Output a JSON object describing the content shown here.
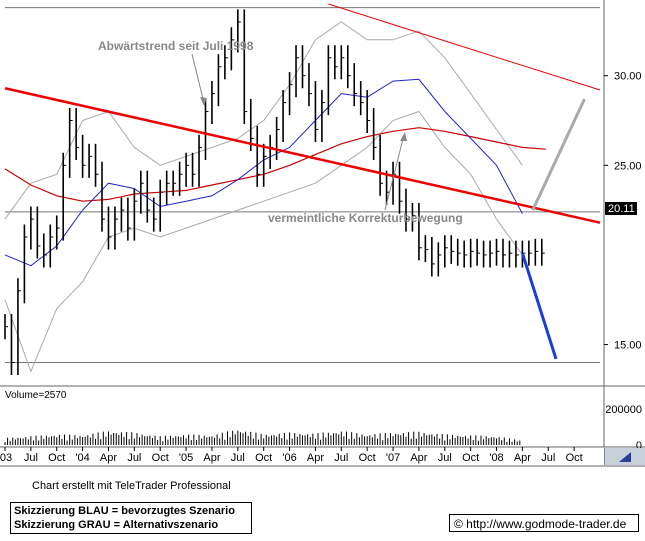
{
  "chart_data": {
    "type": "line",
    "price_axis": {
      "ticks": [
        {
          "label": "30.00",
          "value": 30
        },
        {
          "label": "25.00",
          "value": 25
        },
        {
          "label": "15.00",
          "value": 15
        }
      ],
      "range": [
        12.8,
        34
      ]
    },
    "last_price": {
      "label": "20.11",
      "value": 20.11
    },
    "volume_axis": {
      "label": "Volume=2570",
      "ticks": [
        {
          "label": "200000",
          "value": 200000
        },
        {
          "label": "0",
          "value": 0
        }
      ],
      "range": [
        0,
        250000
      ]
    },
    "x_ticks": [
      "'03",
      "Jul",
      "Oct",
      "'04",
      "Apr",
      "Jul",
      "Oct",
      "'05",
      "Apr",
      "Jul",
      "Oct",
      "'06",
      "Apr",
      "Jul",
      "Oct",
      "'07",
      "Apr",
      "Jul",
      "Oct",
      "'08",
      "Apr",
      "Jul",
      "Oct"
    ],
    "x_range": [
      0,
      23
    ],
    "annotations": [
      {
        "text": "Abwärtstrend seit Juli 1998"
      },
      {
        "text": "vermeintliche Korrekturbewegung"
      }
    ],
    "trendlines": [
      {
        "kind": "downtrend",
        "color": "#ee0000",
        "from": [
          0,
          29.3
        ],
        "to": [
          23,
          21.8
        ]
      },
      {
        "kind": "upper-channel",
        "color": "#ee0000",
        "from": [
          12.5,
          34.0
        ],
        "to": [
          23,
          29.2
        ]
      },
      {
        "kind": "horizontal-top",
        "color": "#777777",
        "value": 33.8
      },
      {
        "kind": "horizontal-mid",
        "color": "#777777",
        "value": 22.4
      },
      {
        "kind": "horizontal-low",
        "color": "#777777",
        "value": 14.0
      }
    ],
    "scenarios": [
      {
        "name": "blau",
        "color": "#1a3fd8",
        "from": [
          20.0,
          20.1
        ],
        "to": [
          21.3,
          14.2
        ]
      },
      {
        "name": "grau",
        "color": "#aaaaaa",
        "from": [
          20.4,
          22.5
        ],
        "to": [
          22.4,
          28.7
        ]
      }
    ],
    "price": {
      "x": [
        0.0,
        0.25,
        0.5,
        0.75,
        1.0,
        1.25,
        1.5,
        1.75,
        2.0,
        2.25,
        2.5,
        2.75,
        3.0,
        3.25,
        3.5,
        3.75,
        4.0,
        4.25,
        4.5,
        4.75,
        5.0,
        5.25,
        5.5,
        5.75,
        6.0,
        6.25,
        6.5,
        6.75,
        7.0,
        7.25,
        7.5,
        7.75,
        8.0,
        8.25,
        8.5,
        8.75,
        9.0,
        9.25,
        9.5,
        9.75,
        10.0,
        10.25,
        10.5,
        10.75,
        11.0,
        11.25,
        11.5,
        11.75,
        12.0,
        12.25,
        12.5,
        12.75,
        13.0,
        13.25,
        13.5,
        13.75,
        14.0,
        14.25,
        14.5,
        14.75,
        15.0,
        15.25,
        15.5,
        15.75,
        16.0,
        16.25,
        16.5,
        16.75,
        17.0,
        17.25,
        17.5,
        17.75,
        18.0,
        18.25,
        18.5,
        18.75,
        19.0,
        19.25,
        19.5,
        19.75,
        20.0,
        20.25,
        20.5,
        20.75
      ],
      "close": [
        16.0,
        14.0,
        18.0,
        21.0,
        22.0,
        20.5,
        20.0,
        21.0,
        21.5,
        25.0,
        27.5,
        26.0,
        25.0,
        25.5,
        24.5,
        22.0,
        21.0,
        22.0,
        22.5,
        21.5,
        23.0,
        24.0,
        22.5,
        22.0,
        23.5,
        24.0,
        24.0,
        24.5,
        25.0,
        24.5,
        26.0,
        28.0,
        29.0,
        30.5,
        31.0,
        32.0,
        33.0,
        28.0,
        26.5,
        24.5,
        25.5,
        26.0,
        27.0,
        28.5,
        29.5,
        31.0,
        30.0,
        29.0,
        27.0,
        28.5,
        31.0,
        30.5,
        31.0,
        30.0,
        29.0,
        28.5,
        27.5,
        26.0,
        24.0,
        23.5,
        24.5,
        23.0,
        22.0,
        22.2,
        20.4,
        20.3,
        19.5,
        20.0,
        20.4,
        20.2,
        20.1,
        20.0,
        20.2,
        20.1,
        20.0,
        20.1,
        20.2,
        20.0,
        20.1,
        20.0,
        20.1,
        20.1,
        20.2,
        20.1
      ]
    },
    "ma_short": {
      "color": "#2222cc",
      "x": [
        0,
        1,
        2,
        3,
        4,
        5,
        6,
        7,
        8,
        9,
        10,
        11,
        12,
        13,
        14,
        15,
        16,
        17,
        18,
        19,
        20
      ],
      "y": [
        20.0,
        19.4,
        20.5,
        22.5,
        24.0,
        23.7,
        22.7,
        23.0,
        23.3,
        24.2,
        25.3,
        26.0,
        27.5,
        29.0,
        28.8,
        29.7,
        29.8,
        28.0,
        26.5,
        25.0,
        22.3
      ]
    },
    "ma_long": {
      "color": "#cc0000",
      "x": [
        0,
        1,
        2,
        3,
        4,
        5,
        6,
        7,
        8,
        9,
        10,
        11,
        12,
        13,
        14,
        15,
        16,
        17,
        18,
        19,
        20,
        20.9
      ],
      "y": [
        24.8,
        23.9,
        23.3,
        23.0,
        23.1,
        23.4,
        23.5,
        23.6,
        23.9,
        24.2,
        24.5,
        25.0,
        25.6,
        26.2,
        26.6,
        26.9,
        27.1,
        26.9,
        26.6,
        26.3,
        26.0,
        25.9
      ]
    },
    "bollinger_upper": {
      "color": "#aaaaaa",
      "x": [
        0,
        1,
        2,
        3,
        4,
        5,
        6,
        7,
        8,
        9,
        10,
        11,
        12,
        13,
        14,
        15,
        16,
        17,
        18,
        19,
        20
      ],
      "y": [
        22.0,
        24.0,
        24.5,
        27.5,
        28.0,
        26.0,
        25.0,
        25.5,
        26.0,
        26.5,
        27.5,
        29.5,
        32.0,
        33.0,
        32.0,
        32.0,
        32.5,
        31.0,
        29.0,
        27.0,
        25.0
      ]
    },
    "bollinger_lower": {
      "color": "#aaaaaa",
      "x": [
        0,
        1,
        2,
        3,
        4,
        5,
        6,
        7,
        8,
        9,
        10,
        11,
        12,
        13,
        14,
        15,
        16,
        17,
        18,
        19,
        20
      ],
      "y": [
        17.5,
        13.5,
        17.0,
        18.5,
        21.0,
        21.5,
        21.0,
        21.5,
        22.0,
        22.5,
        23.0,
        23.5,
        24.0,
        25.0,
        26.0,
        27.5,
        28.0,
        26.0,
        24.5,
        22.0,
        20.0
      ]
    },
    "volume": {
      "x": [
        0,
        1,
        2,
        3,
        4,
        5,
        6,
        7,
        8,
        9,
        10,
        11,
        12,
        13,
        14,
        15,
        16,
        17,
        18,
        19,
        20
      ],
      "values": [
        40000,
        50000,
        60000,
        55000,
        80000,
        70000,
        50000,
        60000,
        55000,
        90000,
        60000,
        70000,
        65000,
        80000,
        60000,
        70000,
        75000,
        60000,
        55000,
        50000,
        25000
      ]
    }
  },
  "credit": "Chart erstellt mit TeleTrader Professional",
  "legend": {
    "line1": "Skizzierung BLAU = bevorzugtes Szenario",
    "line2": "Skizzierung GRAU = Alternativszenario"
  },
  "url": "© http://www.godmode-trader.de"
}
